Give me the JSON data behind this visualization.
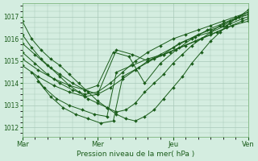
{
  "xlabel": "Pression niveau de la mer( hPa )",
  "bg_color": "#d4ede0",
  "grid_color": "#a8c8b8",
  "line_color": "#1a5c1a",
  "ylim": [
    1011.6,
    1017.6
  ],
  "yticks": [
    1012,
    1013,
    1014,
    1015,
    1016,
    1017
  ],
  "xtick_labels": [
    "Mar",
    "Mer",
    "Jeu",
    "Ven"
  ],
  "xtick_positions": [
    0,
    96,
    192,
    288
  ],
  "total_points": 288,
  "series": [
    {
      "x": [
        0,
        12,
        24,
        36,
        48,
        60,
        72,
        84,
        96,
        108,
        120,
        132,
        144,
        156,
        168,
        180,
        192,
        204,
        216,
        228,
        240,
        252,
        264,
        276,
        288
      ],
      "y": [
        1016.8,
        1016.0,
        1015.5,
        1015.1,
        1014.8,
        1014.4,
        1014.0,
        1013.6,
        1013.2,
        1012.9,
        1012.6,
        1012.4,
        1012.3,
        1012.5,
        1012.8,
        1013.3,
        1013.8,
        1014.3,
        1014.9,
        1015.4,
        1015.9,
        1016.3,
        1016.7,
        1017.0,
        1017.3
      ]
    },
    {
      "x": [
        0,
        12,
        24,
        36,
        48,
        60,
        72,
        84,
        96,
        108,
        120,
        132,
        144,
        156,
        168,
        180,
        192,
        204,
        216,
        228,
        240,
        252,
        264,
        276,
        288
      ],
      "y": [
        1016.2,
        1015.6,
        1015.1,
        1014.7,
        1014.3,
        1013.9,
        1013.6,
        1013.3,
        1013.1,
        1012.9,
        1012.7,
        1012.8,
        1013.1,
        1013.6,
        1014.0,
        1014.4,
        1014.9,
        1015.3,
        1015.7,
        1016.0,
        1016.3,
        1016.6,
        1016.8,
        1017.0,
        1017.2
      ]
    },
    {
      "x": [
        0,
        16,
        32,
        48,
        64,
        80,
        96,
        112,
        128,
        144,
        160,
        176,
        192,
        208,
        224,
        240,
        256,
        272,
        288
      ],
      "y": [
        1015.8,
        1015.3,
        1014.8,
        1014.4,
        1014.0,
        1013.7,
        1013.5,
        1013.8,
        1014.2,
        1014.6,
        1015.0,
        1015.3,
        1015.6,
        1015.9,
        1016.2,
        1016.4,
        1016.6,
        1016.9,
        1017.1
      ]
    },
    {
      "x": [
        0,
        16,
        32,
        48,
        64,
        80,
        96,
        112,
        128,
        144,
        160,
        176,
        192,
        208,
        224,
        240,
        256,
        272,
        288
      ],
      "y": [
        1015.4,
        1014.9,
        1014.4,
        1014.0,
        1013.7,
        1013.5,
        1013.6,
        1014.0,
        1014.5,
        1015.0,
        1015.4,
        1015.7,
        1016.0,
        1016.2,
        1016.4,
        1016.6,
        1016.8,
        1017.0,
        1017.2
      ]
    },
    {
      "x": [
        0,
        20,
        40,
        60,
        80,
        96,
        116,
        136,
        156,
        176,
        196,
        216,
        236,
        256,
        276,
        288
      ],
      "y": [
        1015.1,
        1014.6,
        1014.2,
        1013.9,
        1013.7,
        1013.9,
        1015.4,
        1015.2,
        1014.0,
        1014.9,
        1015.5,
        1016.0,
        1016.4,
        1016.7,
        1017.0,
        1017.1
      ]
    },
    {
      "x": [
        0,
        20,
        40,
        60,
        80,
        96,
        120,
        140,
        160,
        180,
        200,
        220,
        240,
        260,
        280,
        288
      ],
      "y": [
        1014.8,
        1014.3,
        1013.9,
        1013.6,
        1013.4,
        1013.5,
        1015.5,
        1015.3,
        1015.0,
        1015.3,
        1015.8,
        1016.1,
        1016.3,
        1016.6,
        1016.9,
        1017.0
      ]
    },
    {
      "x": [
        12,
        28,
        44,
        60,
        76,
        92,
        108,
        120,
        140,
        160,
        180,
        200,
        220,
        240,
        260,
        280,
        288
      ],
      "y": [
        1014.5,
        1013.8,
        1013.3,
        1013.0,
        1012.8,
        1012.6,
        1012.5,
        1014.5,
        1014.8,
        1015.1,
        1015.3,
        1015.6,
        1015.9,
        1016.2,
        1016.5,
        1016.8,
        1016.9
      ]
    },
    {
      "x": [
        20,
        36,
        52,
        68,
        84,
        100,
        116,
        128,
        148,
        168,
        188,
        208,
        228,
        248,
        268,
        288
      ],
      "y": [
        1014.1,
        1013.4,
        1012.9,
        1012.6,
        1012.4,
        1012.2,
        1012.3,
        1014.3,
        1014.7,
        1015.1,
        1015.4,
        1015.7,
        1016.0,
        1016.3,
        1016.6,
        1016.8
      ]
    }
  ]
}
